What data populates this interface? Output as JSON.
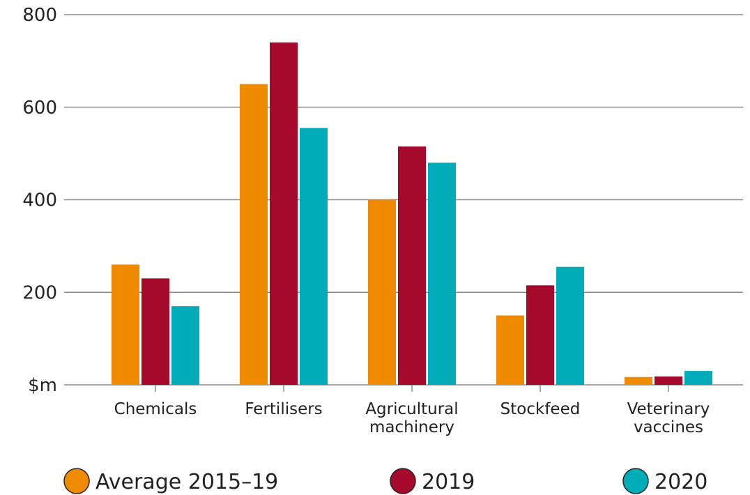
{
  "chart_data": {
    "type": "bar",
    "categories": [
      "Chemicals",
      "Fertilisers",
      "Agricultural machinery",
      "Stockfeed",
      "Veterinary vaccines"
    ],
    "series": [
      {
        "name": "Average 2015–19",
        "color": "#f08a00",
        "values": [
          260,
          650,
          400,
          150,
          17
        ]
      },
      {
        "name": "2019",
        "color": "#a50a2d",
        "values": [
          230,
          740,
          515,
          215,
          18
        ]
      },
      {
        "name": "2020",
        "color": "#00acb8",
        "values": [
          170,
          555,
          480,
          255,
          30
        ]
      }
    ],
    "ylim": [
      0,
      800
    ],
    "yticks": [
      {
        "value": 0,
        "label": "$m"
      },
      200,
      400,
      600,
      800
    ],
    "grid": true,
    "legend": "bottom"
  }
}
